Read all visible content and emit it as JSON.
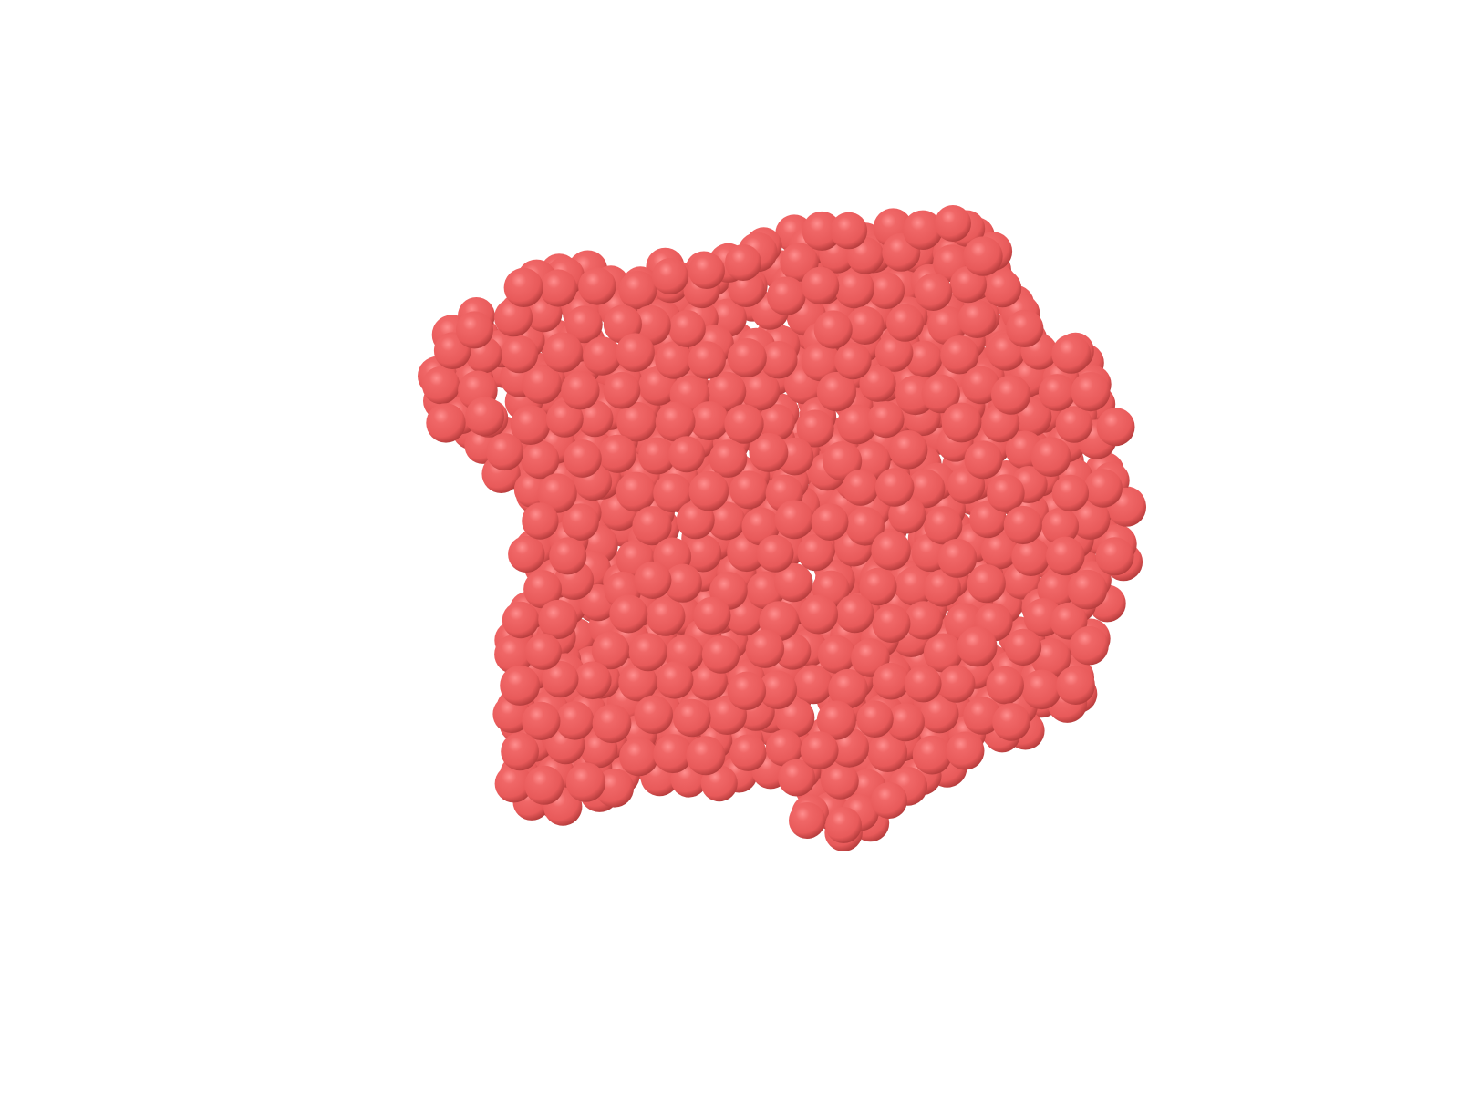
{
  "scene": {
    "subject": "sphere-cluster",
    "background_color": "#ffffff",
    "sphere_color": "#e85a5a",
    "sphere_highlight_color": "#ff8f8f",
    "sphere_shadow_color": "#a83434"
  }
}
